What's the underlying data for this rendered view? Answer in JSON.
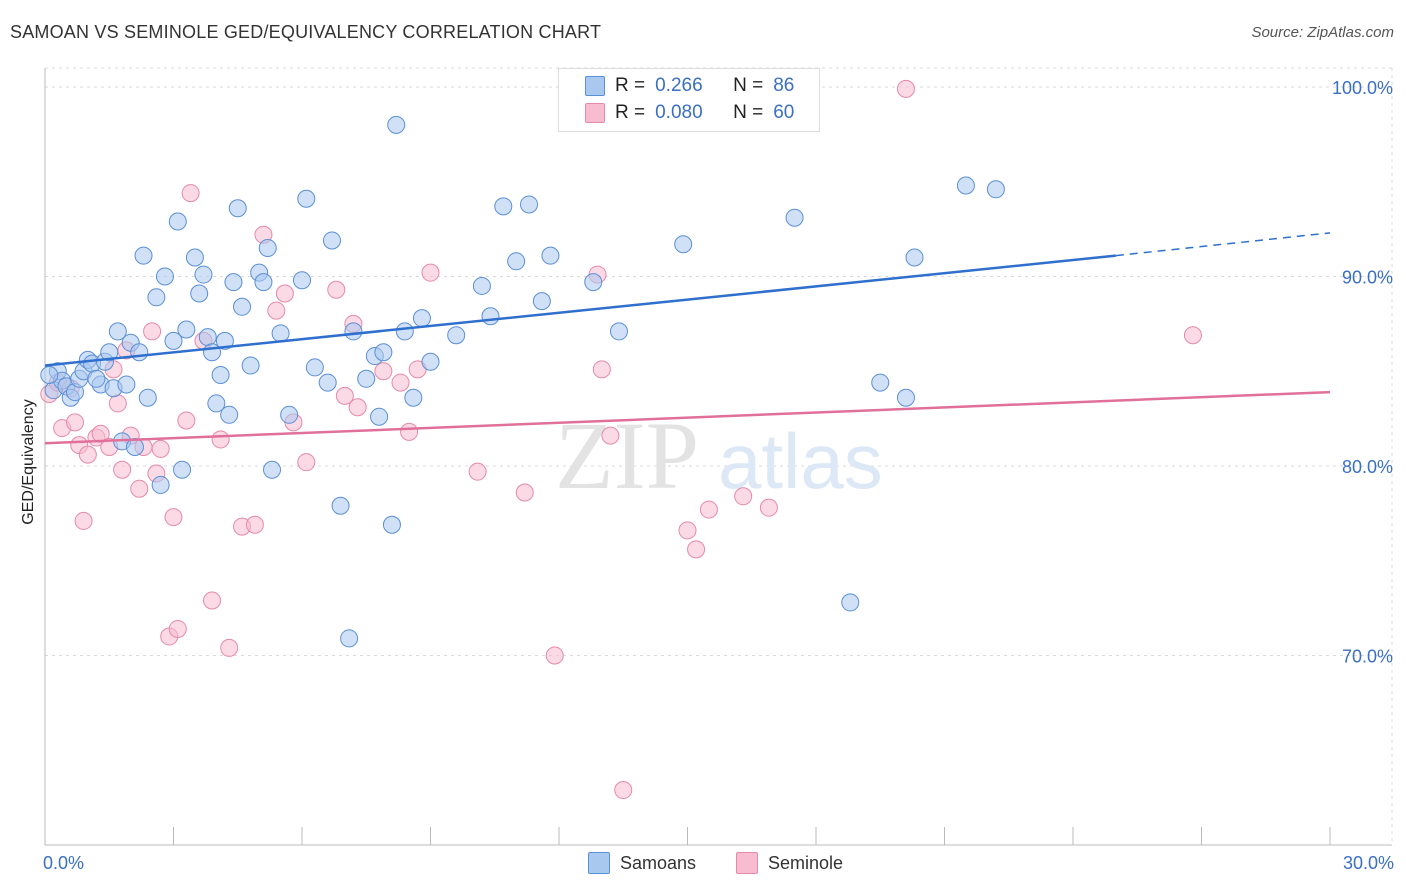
{
  "header": {
    "title": "SAMOAN VS SEMINOLE GED/EQUIVALENCY CORRELATION CHART",
    "source": "Source: ZipAtlas.com"
  },
  "watermark": {
    "zip": "ZIP",
    "atlas": "atlas"
  },
  "legend_top": {
    "r_label": "R =",
    "n_label": "N =",
    "rows": [
      {
        "r": "0.266",
        "n": "86"
      },
      {
        "r": "0.080",
        "n": "60"
      }
    ]
  },
  "legend_bottom": [
    "Samoans",
    "Seminole"
  ],
  "colors": {
    "samoans_fill": "#a9c8f0",
    "samoans_stroke": "#5b8fd6",
    "samoans_line": "#2f6fce",
    "seminole_fill": "#f7bcd0",
    "seminole_stroke": "#e58aa8",
    "seminole_line": "#e0709a",
    "tick_label": "#3b6fc4",
    "grid": "#d9d9d9"
  },
  "chart_data": {
    "type": "scatter",
    "title": "SAMOAN VS SEMINOLE GED/EQUIVALENCY CORRELATION CHART",
    "xlabel": "",
    "ylabel": "GED/Equivalency",
    "xlim": [
      0,
      30
    ],
    "ylim": [
      60,
      101
    ],
    "x_tick_labels": [
      "0.0%",
      "30.0%"
    ],
    "y_ticks": [
      70,
      80,
      90,
      100
    ],
    "y_tick_labels": [
      "70.0%",
      "80.0%",
      "90.0%",
      "100.0%"
    ],
    "grid": true,
    "legend_position": "bottom",
    "series": [
      {
        "name": "Samoans",
        "r": 0.266,
        "n": 86,
        "trend": {
          "x0": 0,
          "y0": 85.3,
          "x1": 25,
          "y1": 91.1,
          "dashed_to_x": 30,
          "dashed_to_y": 92.3
        },
        "points": [
          [
            0.2,
            84.0
          ],
          [
            0.3,
            85.0
          ],
          [
            0.4,
            84.5
          ],
          [
            0.5,
            84.2
          ],
          [
            0.6,
            83.6
          ],
          [
            0.7,
            83.9
          ],
          [
            0.8,
            84.6
          ],
          [
            0.9,
            85.0
          ],
          [
            1.0,
            85.6
          ],
          [
            1.1,
            85.4
          ],
          [
            1.3,
            84.3
          ],
          [
            1.4,
            85.5
          ],
          [
            1.5,
            86.0
          ],
          [
            1.6,
            84.1
          ],
          [
            1.7,
            87.1
          ],
          [
            1.8,
            81.3
          ],
          [
            1.9,
            84.3
          ],
          [
            2.0,
            86.5
          ],
          [
            2.1,
            81.0
          ],
          [
            2.2,
            86.0
          ],
          [
            2.3,
            91.1
          ],
          [
            2.4,
            83.6
          ],
          [
            2.6,
            88.9
          ],
          [
            2.7,
            79.0
          ],
          [
            2.8,
            90.0
          ],
          [
            3.0,
            86.6
          ],
          [
            3.1,
            92.9
          ],
          [
            3.2,
            79.8
          ],
          [
            3.3,
            87.2
          ],
          [
            3.5,
            91.0
          ],
          [
            3.6,
            89.1
          ],
          [
            3.7,
            90.1
          ],
          [
            3.8,
            86.8
          ],
          [
            3.9,
            86.0
          ],
          [
            4.0,
            83.3
          ],
          [
            4.1,
            84.8
          ],
          [
            4.2,
            86.6
          ],
          [
            4.3,
            82.7
          ],
          [
            4.4,
            89.7
          ],
          [
            4.5,
            93.6
          ],
          [
            4.6,
            88.4
          ],
          [
            4.8,
            85.3
          ],
          [
            5.0,
            90.2
          ],
          [
            5.1,
            89.7
          ],
          [
            5.2,
            91.5
          ],
          [
            5.3,
            79.8
          ],
          [
            5.5,
            87.0
          ],
          [
            5.7,
            82.7
          ],
          [
            6.0,
            89.8
          ],
          [
            6.1,
            94.1
          ],
          [
            6.3,
            85.2
          ],
          [
            6.6,
            84.4
          ],
          [
            6.7,
            91.9
          ],
          [
            6.9,
            77.9
          ],
          [
            7.1,
            70.9
          ],
          [
            7.2,
            87.1
          ],
          [
            7.5,
            84.6
          ],
          [
            7.7,
            85.8
          ],
          [
            7.8,
            82.6
          ],
          [
            7.9,
            86.0
          ],
          [
            8.1,
            76.9
          ],
          [
            8.2,
            98.0
          ],
          [
            8.4,
            87.1
          ],
          [
            8.6,
            83.6
          ],
          [
            8.8,
            87.8
          ],
          [
            9.0,
            85.5
          ],
          [
            9.6,
            86.9
          ],
          [
            10.2,
            89.5
          ],
          [
            10.4,
            87.9
          ],
          [
            10.7,
            93.7
          ],
          [
            11.0,
            90.8
          ],
          [
            11.3,
            93.8
          ],
          [
            11.6,
            88.7
          ],
          [
            11.8,
            91.1
          ],
          [
            12.8,
            89.7
          ],
          [
            13.4,
            87.1
          ],
          [
            14.9,
            91.7
          ],
          [
            17.5,
            93.1
          ],
          [
            18.8,
            72.8
          ],
          [
            19.5,
            84.4
          ],
          [
            20.1,
            83.6
          ],
          [
            20.3,
            91.0
          ],
          [
            21.5,
            94.8
          ],
          [
            22.2,
            94.6
          ],
          [
            0.1,
            84.8
          ],
          [
            1.2,
            84.6
          ]
        ]
      },
      {
        "name": "Seminole",
        "r": 0.08,
        "n": 60,
        "trend": {
          "x0": 0,
          "y0": 81.2,
          "x1": 30,
          "y1": 83.9
        },
        "points": [
          [
            0.1,
            83.8
          ],
          [
            0.3,
            84.4
          ],
          [
            0.4,
            82.0
          ],
          [
            0.6,
            84.1
          ],
          [
            0.7,
            82.3
          ],
          [
            0.8,
            81.1
          ],
          [
            0.9,
            77.1
          ],
          [
            1.0,
            80.6
          ],
          [
            1.2,
            81.5
          ],
          [
            1.3,
            81.7
          ],
          [
            1.5,
            81.0
          ],
          [
            1.6,
            85.1
          ],
          [
            1.7,
            83.3
          ],
          [
            1.8,
            79.8
          ],
          [
            1.9,
            86.1
          ],
          [
            2.0,
            81.6
          ],
          [
            2.2,
            78.8
          ],
          [
            2.3,
            81.0
          ],
          [
            2.5,
            87.1
          ],
          [
            2.6,
            79.6
          ],
          [
            2.7,
            80.9
          ],
          [
            2.9,
            71.0
          ],
          [
            3.0,
            77.3
          ],
          [
            3.1,
            71.4
          ],
          [
            3.3,
            82.4
          ],
          [
            3.4,
            94.4
          ],
          [
            3.7,
            86.6
          ],
          [
            3.9,
            72.9
          ],
          [
            4.1,
            81.4
          ],
          [
            4.3,
            70.4
          ],
          [
            4.6,
            76.8
          ],
          [
            4.9,
            76.9
          ],
          [
            5.1,
            92.2
          ],
          [
            5.4,
            88.2
          ],
          [
            5.6,
            89.1
          ],
          [
            5.8,
            82.3
          ],
          [
            6.1,
            80.2
          ],
          [
            6.8,
            89.3
          ],
          [
            7.0,
            83.7
          ],
          [
            7.2,
            87.5
          ],
          [
            7.3,
            83.1
          ],
          [
            7.9,
            85.0
          ],
          [
            8.3,
            84.4
          ],
          [
            8.5,
            81.8
          ],
          [
            8.7,
            85.1
          ],
          [
            9.0,
            90.2
          ],
          [
            10.1,
            79.7
          ],
          [
            11.2,
            78.6
          ],
          [
            11.9,
            70.0
          ],
          [
            12.9,
            90.1
          ],
          [
            13.0,
            85.1
          ],
          [
            13.2,
            81.6
          ],
          [
            13.5,
            62.9
          ],
          [
            15.0,
            76.6
          ],
          [
            15.2,
            75.6
          ],
          [
            15.5,
            77.7
          ],
          [
            16.3,
            78.4
          ],
          [
            16.9,
            77.8
          ],
          [
            20.1,
            99.9
          ],
          [
            26.8,
            86.9
          ]
        ]
      }
    ]
  }
}
